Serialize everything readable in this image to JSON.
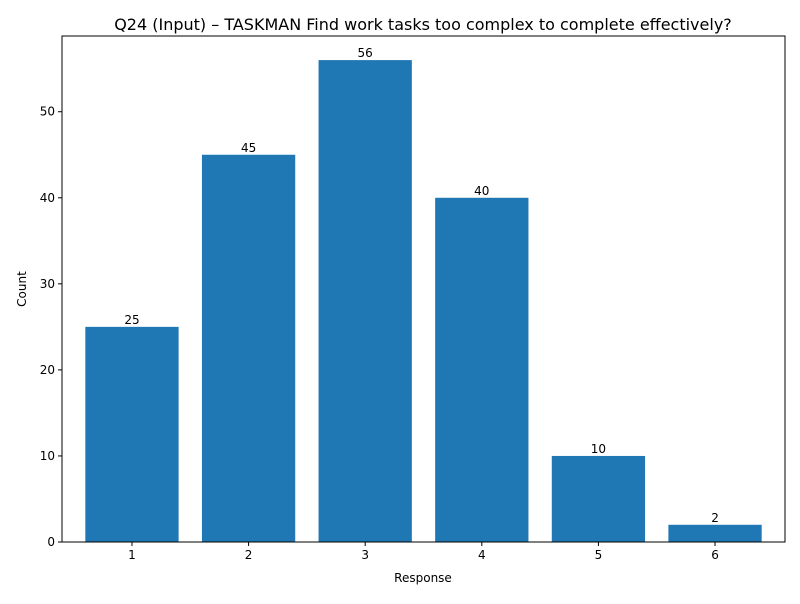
{
  "chart_data": {
    "type": "bar",
    "title": "Q24 (Input) – TASKMAN Find work tasks too complex to complete effectively?",
    "xlabel": "Response",
    "ylabel": "Count",
    "categories": [
      "1",
      "2",
      "3",
      "4",
      "5",
      "6"
    ],
    "values": [
      25,
      45,
      56,
      40,
      10,
      2
    ],
    "data_labels": [
      "25",
      "45",
      "56",
      "40",
      "10",
      "2"
    ],
    "ylim": [
      0,
      58.8
    ],
    "yticks": [
      0,
      10,
      20,
      30,
      40,
      50
    ],
    "ytick_labels": [
      "0",
      "10",
      "20",
      "30",
      "40",
      "50"
    ],
    "grid": false,
    "legend": "none",
    "bar_color": "#1f77b4"
  }
}
